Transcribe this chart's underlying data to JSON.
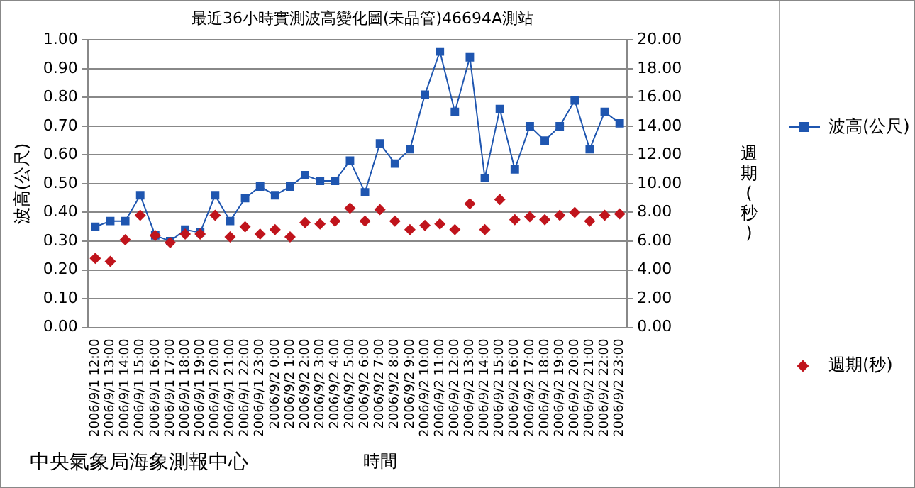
{
  "chart_data": {
    "type": "line",
    "title": "最近36小時實測波高變化圖(未品管)46694A測站",
    "xlabel": "時間",
    "ylabel": "波高(公尺)",
    "y2label": "週期(秒)",
    "categories": [
      "2006/9/1 12:00",
      "2006/9/1 13:00",
      "2006/9/1 14:00",
      "2006/9/1 15:00",
      "2006/9/1 16:00",
      "2006/9/1 17:00",
      "2006/9/1 18:00",
      "2006/9/1 19:00",
      "2006/9/1 20:00",
      "2006/9/1 21:00",
      "2006/9/1 22:00",
      "2006/9/1 23:00",
      "2006/9/2 0:00",
      "2006/9/2 1:00",
      "2006/9/2 2:00",
      "2006/9/2 3:00",
      "2006/9/2 4:00",
      "2006/9/2 5:00",
      "2006/9/2 6:00",
      "2006/9/2 7:00",
      "2006/9/2 8:00",
      "2006/9/2 9:00",
      "2006/9/2 10:00",
      "2006/9/2 11:00",
      "2006/9/2 12:00",
      "2006/9/2 13:00",
      "2006/9/2 14:00",
      "2006/9/2 15:00",
      "2006/9/2 16:00",
      "2006/9/2 17:00",
      "2006/9/2 18:00",
      "2006/9/2 19:00",
      "2006/9/2 20:00",
      "2006/9/2 21:00",
      "2006/9/2 22:00",
      "2006/9/2 23:00"
    ],
    "series": [
      {
        "name": "波高(公尺)",
        "marker": "square",
        "color": "#1f56b0",
        "values": [
          0.35,
          0.37,
          0.37,
          0.46,
          0.32,
          0.3,
          0.34,
          0.33,
          0.46,
          0.37,
          0.45,
          0.49,
          0.46,
          0.49,
          0.53,
          0.51,
          0.51,
          0.58,
          0.47,
          0.64,
          0.57,
          0.62,
          0.81,
          0.96,
          0.75,
          0.94,
          0.52,
          0.76,
          0.55,
          0.7,
          0.65,
          0.7,
          0.79,
          0.62,
          0.75,
          0.71
        ]
      },
      {
        "name": "週期(秒)",
        "type": "scatter",
        "marker": "diamond",
        "axis": "y2",
        "color": "#c0141c",
        "values": [
          4.8,
          4.6,
          6.1,
          7.8,
          6.4,
          5.9,
          6.5,
          6.5,
          7.8,
          6.3,
          7.0,
          6.5,
          6.8,
          6.3,
          7.3,
          7.2,
          7.4,
          8.3,
          7.4,
          8.2,
          7.4,
          6.8,
          7.1,
          7.2,
          6.8,
          8.6,
          6.8,
          8.9,
          7.5,
          7.7,
          7.5,
          7.8,
          8.0,
          7.4,
          7.8,
          7.9
        ]
      }
    ],
    "ylim": [
      0,
      1
    ],
    "yticks": [
      {
        "value": 0,
        "label": "0.00"
      },
      {
        "value": 0.1,
        "label": "0.10"
      },
      {
        "value": 0.2,
        "label": "0.20"
      },
      {
        "value": 0.3,
        "label": "0.30"
      },
      {
        "value": 0.4,
        "label": "0.40"
      },
      {
        "value": 0.5,
        "label": "0.50"
      },
      {
        "value": 0.6,
        "label": "0.60"
      },
      {
        "value": 0.7,
        "label": "0.70"
      },
      {
        "value": 0.8,
        "label": "0.80"
      },
      {
        "value": 0.9,
        "label": "0.90"
      },
      {
        "value": 1,
        "label": "1.00"
      }
    ],
    "y2lim": [
      0,
      20
    ],
    "y2ticks": [
      {
        "value": 0,
        "label": "0.00"
      },
      {
        "value": 2,
        "label": "2.00"
      },
      {
        "value": 4,
        "label": "4.00"
      },
      {
        "value": 6,
        "label": "6.00"
      },
      {
        "value": 8,
        "label": "8.00"
      },
      {
        "value": 10,
        "label": "10.00"
      },
      {
        "value": 12,
        "label": "12.00"
      },
      {
        "value": 14,
        "label": "14.00"
      },
      {
        "value": 16,
        "label": "16.00"
      },
      {
        "value": 18,
        "label": "18.00"
      },
      {
        "value": 20,
        "label": "20.00"
      }
    ],
    "grid": "y",
    "legend": "right",
    "annotations": [
      "中央氣象局海象測報中心"
    ]
  }
}
